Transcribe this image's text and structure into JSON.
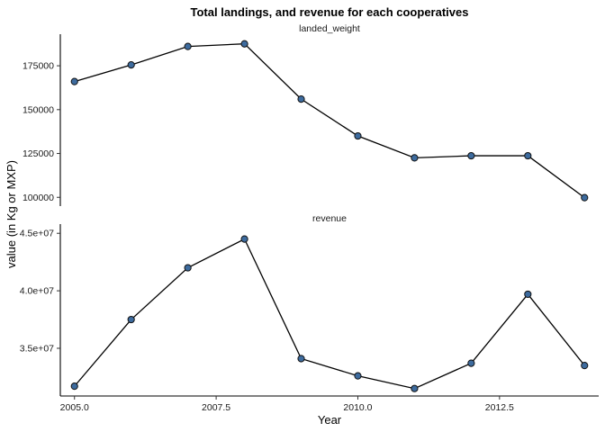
{
  "chart_data": {
    "type": "line",
    "title": "Total landings, and revenue for each cooperatives",
    "xlabel": "Year",
    "ylabel": "value (in Kg or MXP)",
    "point_color": "#3d6b9e",
    "x_ticks": [
      "2005.0",
      "2007.5",
      "2010.0",
      "2012.5"
    ],
    "x_tick_values": [
      2005.0,
      2007.5,
      2010.0,
      2012.5
    ],
    "xlim": [
      2004.75,
      2014.25
    ],
    "grid": false,
    "legend": "none",
    "panels": [
      {
        "strip": "landed_weight",
        "x": [
          2005,
          2006,
          2007,
          2008,
          2009,
          2010,
          2011,
          2012,
          2013,
          2014
        ],
        "values": [
          166000,
          175500,
          186000,
          187500,
          156000,
          135000,
          122500,
          123700,
          123700,
          99800
        ],
        "ylim": [
          95000,
          193000
        ],
        "y_ticks": [
          "100000",
          "125000",
          "150000",
          "175000"
        ],
        "y_tick_values": [
          100000,
          125000,
          150000,
          175000
        ]
      },
      {
        "strip": "revenue",
        "x": [
          2005,
          2006,
          2007,
          2008,
          2009,
          2010,
          2011,
          2012,
          2013,
          2014
        ],
        "values": [
          31700000,
          37500000,
          42000000,
          44500000,
          34100000,
          32600000,
          31500000,
          33700000,
          39700000,
          33500000
        ],
        "ylim": [
          30850000,
          45800000
        ],
        "y_ticks": [
          "3.5e+07",
          "4.0e+07",
          "4.5e+07"
        ],
        "y_tick_values": [
          35000000,
          40000000,
          45000000
        ]
      }
    ]
  }
}
